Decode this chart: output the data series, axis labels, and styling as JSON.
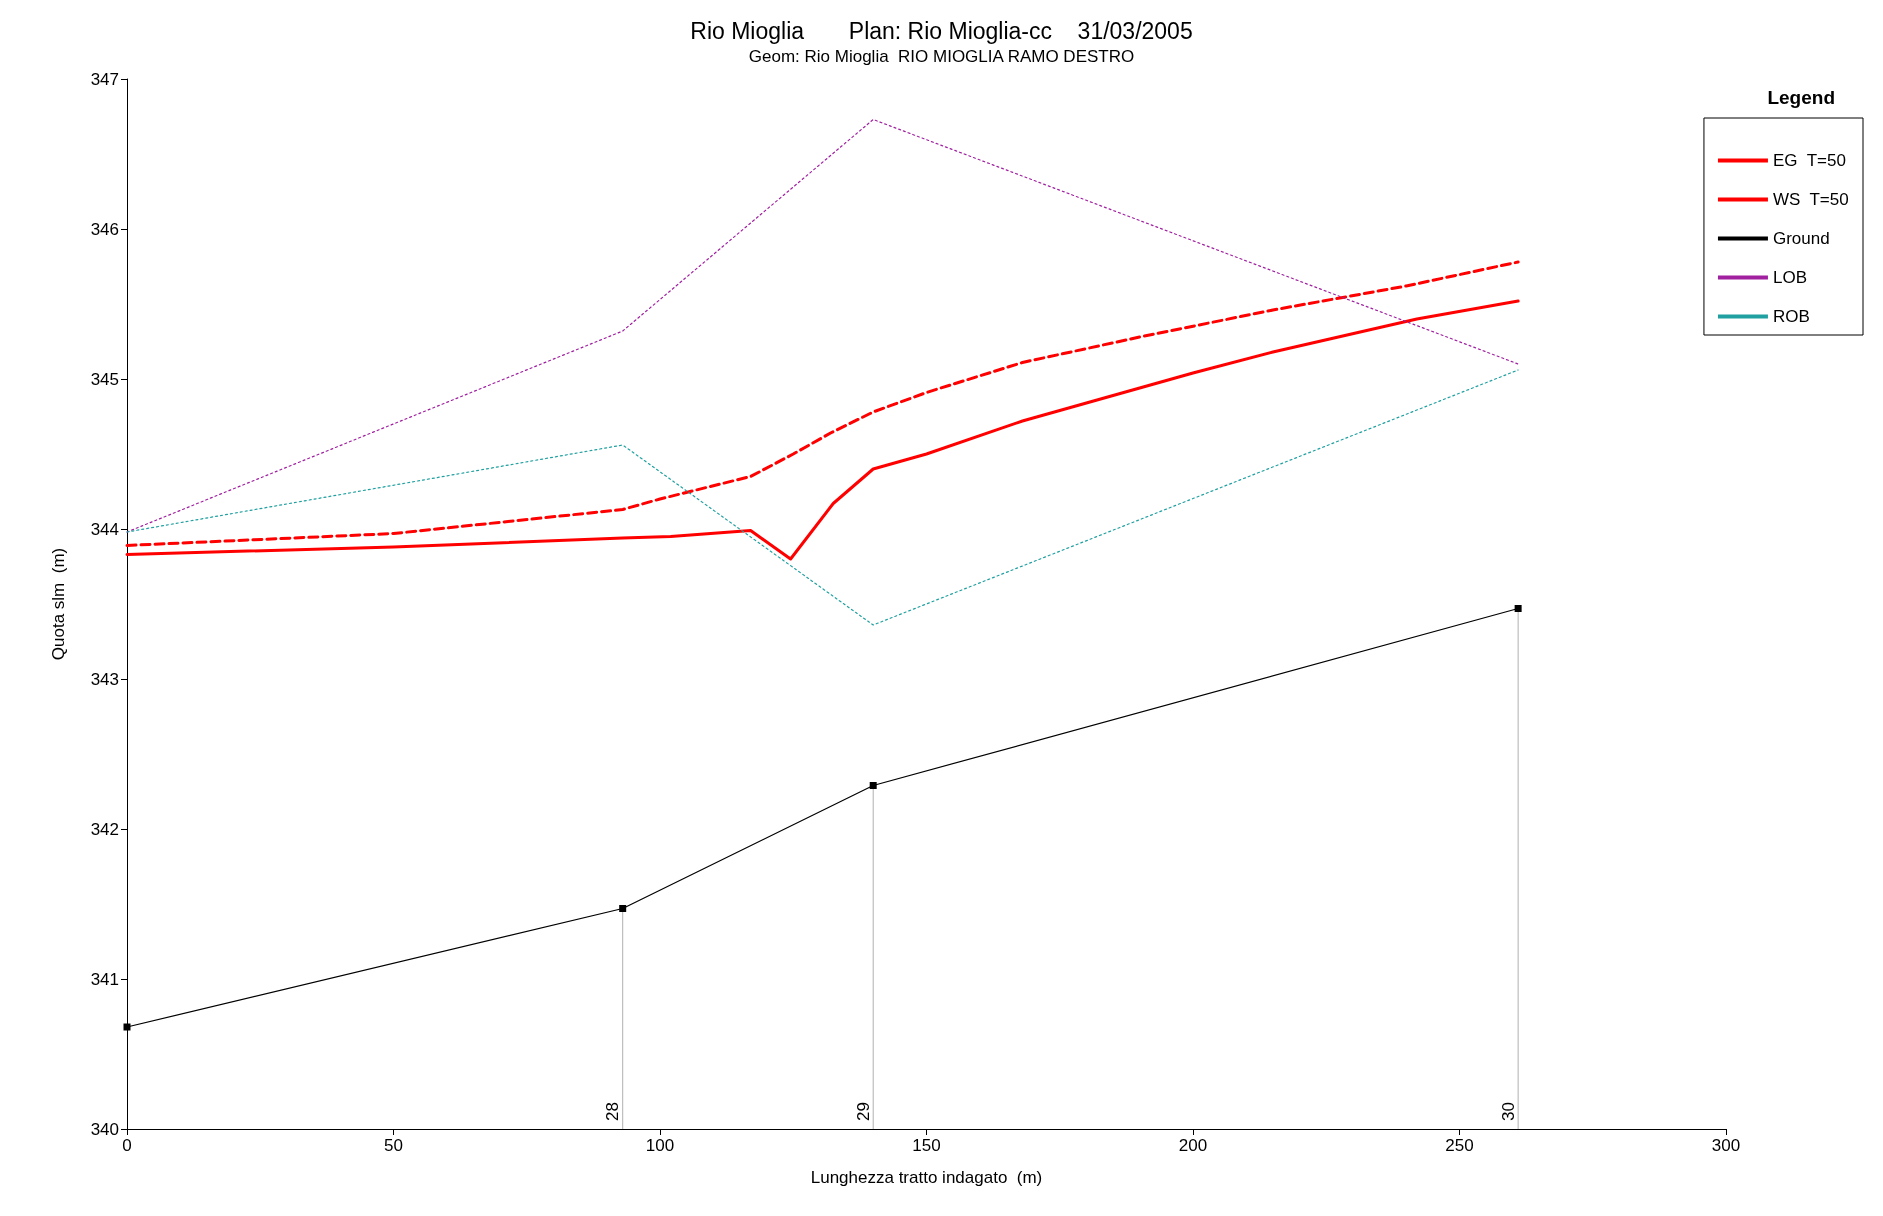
{
  "chart_data": {
    "type": "line",
    "title": "Rio Mioglia       Plan: Rio Mioglia-cc    31/03/2005",
    "subtitle": "Geom: Rio Mioglia  RIO MIOGLIA RAMO DESTRO",
    "xlabel": "Lunghezza tratto indagato  (m)",
    "ylabel": "Quota slm  (m)",
    "legend_title": "Legend",
    "legend": "top right",
    "grid": false,
    "xlim": [
      0,
      300
    ],
    "xticks": [
      0,
      50,
      100,
      150,
      200,
      250,
      300
    ],
    "ylim": [
      340,
      347
    ],
    "yticks": [
      340,
      341,
      342,
      343,
      344,
      345,
      346,
      347
    ],
    "series": [
      {
        "name": "EG  T=50",
        "color": "#ff0000",
        "line_style": "dashed",
        "marker": "none",
        "x": [
          0,
          50,
          93,
          100,
          117,
          125,
          132,
          140,
          150,
          168,
          190,
          215,
          240,
          261
        ],
        "values": [
          343.89,
          343.97,
          344.13,
          344.2,
          344.35,
          344.5,
          344.64,
          344.78,
          344.91,
          345.11,
          345.28,
          345.46,
          345.62,
          345.78
        ]
      },
      {
        "name": "WS  T=50",
        "color": "#ff0000",
        "line_style": "solid",
        "marker": "none",
        "x": [
          0,
          50,
          93,
          102,
          117,
          124.5,
          132.5,
          140,
          150,
          168,
          180,
          200,
          215,
          242,
          261
        ],
        "values": [
          343.83,
          343.88,
          343.94,
          343.95,
          343.99,
          343.8,
          344.17,
          344.4,
          344.5,
          344.72,
          344.84,
          345.04,
          345.18,
          345.4,
          345.52
        ]
      },
      {
        "name": "Ground",
        "color": "#000000",
        "line_style": "solid",
        "marker": "square",
        "x": [
          0,
          93,
          140,
          261
        ],
        "values": [
          340.68,
          341.47,
          342.29,
          343.47
        ]
      },
      {
        "name": "LOB",
        "color": "#a020a0",
        "line_style": "dotted",
        "marker": "none",
        "x": [
          0,
          93,
          140,
          261
        ],
        "values": [
          343.98,
          345.32,
          346.73,
          345.1
        ]
      },
      {
        "name": "ROB",
        "color": "#20a0a0",
        "line_style": "dotted",
        "marker": "none",
        "x": [
          0,
          93,
          140,
          261
        ],
        "values": [
          343.98,
          344.56,
          343.36,
          345.06
        ]
      }
    ],
    "annotations": [
      {
        "text": "28",
        "x": 93,
        "y": 341.47
      },
      {
        "text": "29",
        "x": 140,
        "y": 342.29
      },
      {
        "text": "30",
        "x": 261,
        "y": 343.47
      }
    ]
  }
}
